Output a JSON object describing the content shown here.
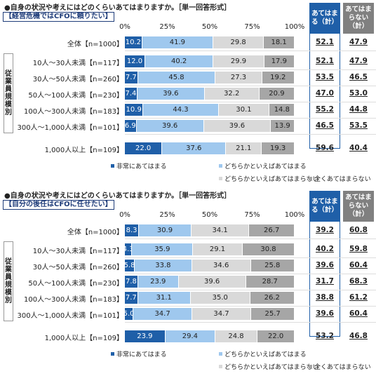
{
  "header": {
    "agree_label": "あてはまる（計）",
    "disagree_label": "あてはまらない（計）"
  },
  "ticks": [
    "0%",
    "25%",
    "50%",
    "75%",
    "100%"
  ],
  "sidebar_label": "従業員規模別",
  "legend": [
    "非常にあてはまる",
    "どちらかといえばあてはまる",
    "どちらかといえばあてはまらない",
    "全くあてはまらない"
  ],
  "colors": {
    "c1": "#1f5fa8",
    "c2": "#9fc8ee",
    "c3": "#d9d9d9",
    "c4": "#a6a6a6",
    "agreeHdr": "#1f5fa8",
    "disagreeHdr": "#808080"
  },
  "panels": [
    {
      "question": "●自身の状況や考えにはどのくらいあてはまりますか。［単一回答形式］",
      "subtitle": "【経営危機ではCFOに頼りたい】"
    },
    {
      "question": "●自身の状況や考えにはどのくらいあてはまりますか。［単一回答形式］",
      "subtitle": "【自分の後任はCFOに任せたい】"
    }
  ],
  "chart_data": [
    {
      "type": "bar",
      "title": "経営危機ではCFOに頼りたい",
      "categories": [
        "全体【n=1000】",
        "10人～30人未満【n=117】",
        "30人～50人未満【n=260】",
        "50人～100人未満【n=230】",
        "100人～300人未満【n=183】",
        "300人～1,000人未満【n=101】",
        "1,000人以上【n=109】"
      ],
      "series": [
        {
          "name": "非常にあてはまる",
          "values": [
            10.2,
            12.0,
            7.7,
            7.4,
            10.9,
            6.9,
            22.0
          ]
        },
        {
          "name": "どちらかといえばあてはまる",
          "values": [
            41.9,
            40.2,
            45.8,
            39.6,
            44.3,
            39.6,
            37.6
          ]
        },
        {
          "name": "どちらかといえばあてはまらない",
          "values": [
            29.8,
            29.9,
            27.3,
            32.2,
            30.1,
            39.6,
            21.1
          ]
        },
        {
          "name": "全くあてはまらない",
          "values": [
            18.1,
            17.9,
            19.2,
            20.9,
            14.8,
            13.9,
            19.3
          ]
        }
      ],
      "agree_total": [
        "52.1",
        "52.1",
        "53.5",
        "47.0",
        "55.2",
        "46.5",
        "59.6"
      ],
      "disagree_total": [
        "47.9",
        "47.9",
        "46.5",
        "53.0",
        "44.8",
        "53.5",
        "40.4"
      ],
      "xlim": [
        0,
        100
      ]
    },
    {
      "type": "bar",
      "title": "自分の後任はCFOに任せたい",
      "categories": [
        "全体【n=1000】",
        "10人～30人未満【n=117】",
        "30人～50人未満【n=260】",
        "50人～100人未満【n=230】",
        "100人～300人未満【n=183】",
        "300人～1,000人未満【n=101】",
        "1,000人以上【n=109】"
      ],
      "series": [
        {
          "name": "非常にあてはまる",
          "values": [
            8.3,
            4.3,
            5.8,
            7.8,
            7.7,
            5.0,
            23.9
          ]
        },
        {
          "name": "どちらかといえばあてはまる",
          "values": [
            30.9,
            35.9,
            33.8,
            23.9,
            31.1,
            34.7,
            29.4
          ]
        },
        {
          "name": "どちらかといえばあてはまらない",
          "values": [
            34.1,
            29.1,
            34.6,
            39.6,
            35.0,
            34.7,
            24.8
          ]
        },
        {
          "name": "全くあてはまらない",
          "values": [
            26.7,
            30.8,
            25.8,
            28.7,
            26.2,
            25.7,
            22.0
          ]
        }
      ],
      "agree_total": [
        "39.2",
        "40.2",
        "39.6",
        "31.7",
        "38.8",
        "39.6",
        "53.2"
      ],
      "disagree_total": [
        "60.8",
        "59.8",
        "60.4",
        "68.3",
        "61.2",
        "60.4",
        "46.8"
      ],
      "xlim": [
        0,
        100
      ]
    }
  ]
}
